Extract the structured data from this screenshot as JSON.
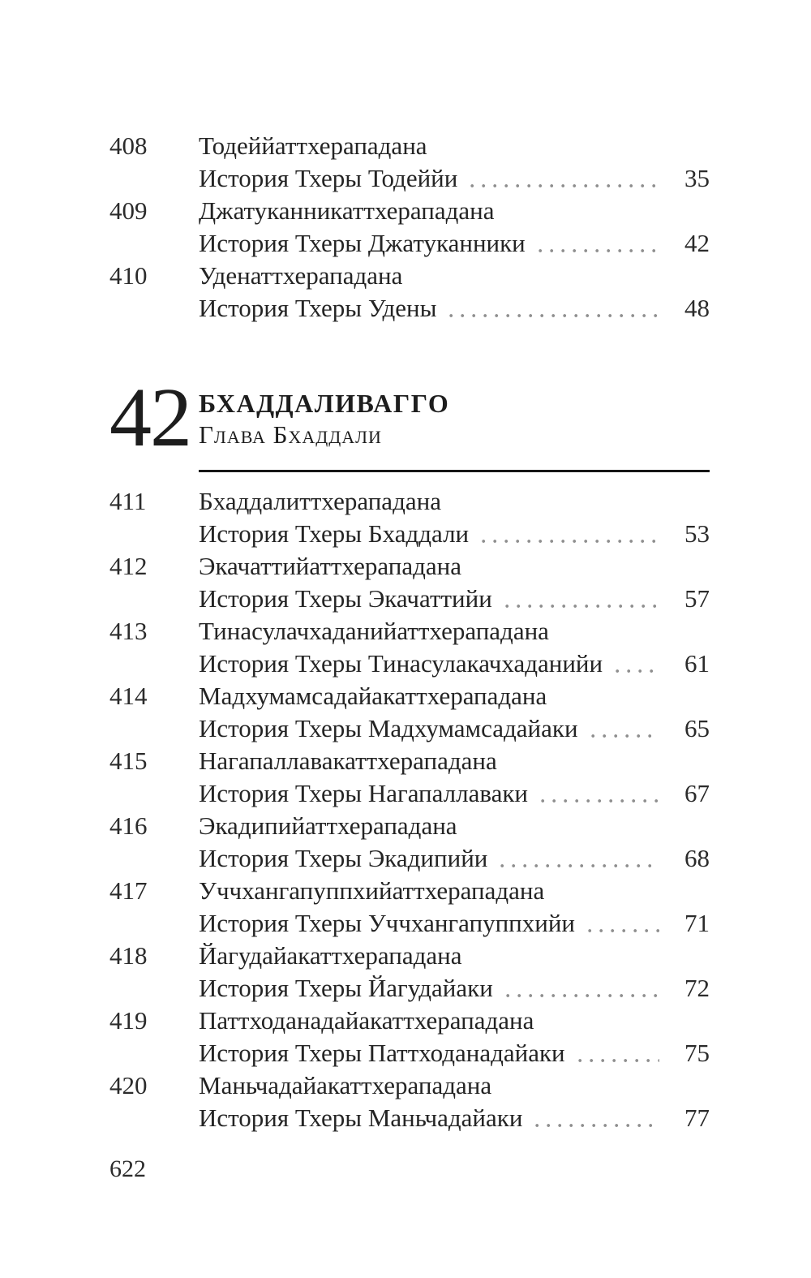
{
  "document": {
    "footer": {
      "page_number": "622"
    },
    "chapter_heading": {
      "number": "42",
      "title": "БХАДДАЛИВАГГО",
      "subtitle": "Глава Бхаддали"
    },
    "entries_top": [
      {
        "num": "408",
        "title": "Тодеййаттхерападана",
        "subtitle": "История Тхеры Тодеййи",
        "page": "35"
      },
      {
        "num": "409",
        "title": "Джатуканникаттхерападана",
        "subtitle": "История Тхеры Джатуканники",
        "page": "42"
      },
      {
        "num": "410",
        "title": "Уденаттхерападана",
        "subtitle": "История Тхеры Удены",
        "page": "48"
      }
    ],
    "entries_bottom": [
      {
        "num": "411",
        "title": "Бхаддалиттхерападана",
        "subtitle": "История Тхеры Бхаддали",
        "page": "53"
      },
      {
        "num": "412",
        "title": "Экачаттийаттхерападана",
        "subtitle": "История Тхеры Экачаттийи",
        "page": "57"
      },
      {
        "num": "413",
        "title": "Тинасулачхаданийаттхерападана",
        "subtitle": "История Тхеры Тинасулакачхаданийи",
        "page": "61"
      },
      {
        "num": "414",
        "title": "Мадхумамсадайакаттхерападана",
        "subtitle": "История Тхеры Мадхумамсадайаки",
        "page": "65"
      },
      {
        "num": "415",
        "title": "Нагапаллавакаттхерападана",
        "subtitle": "История Тхеры Нагапаллаваки",
        "page": "67"
      },
      {
        "num": "416",
        "title": "Экадипийаттхерападана",
        "subtitle": "История Тхеры Экадипийи",
        "page": "68"
      },
      {
        "num": "417",
        "title": "Уччхангапуппхийаттхерападана",
        "subtitle": "История Тхеры Уччхангапуппхийи",
        "page": "71"
      },
      {
        "num": "418",
        "title": "Йагудайакаттхерападана",
        "subtitle": "История Тхеры Йагудайаки",
        "page": "72"
      },
      {
        "num": "419",
        "title": "Паттходанадайакаттхерападана",
        "subtitle": "История Тхеры Паттходанадайаки",
        "page": "75"
      },
      {
        "num": "420",
        "title": "Маньчадайакаттхерападана",
        "subtitle": "История Тхеры Маньчадайаки",
        "page": "77"
      }
    ]
  }
}
